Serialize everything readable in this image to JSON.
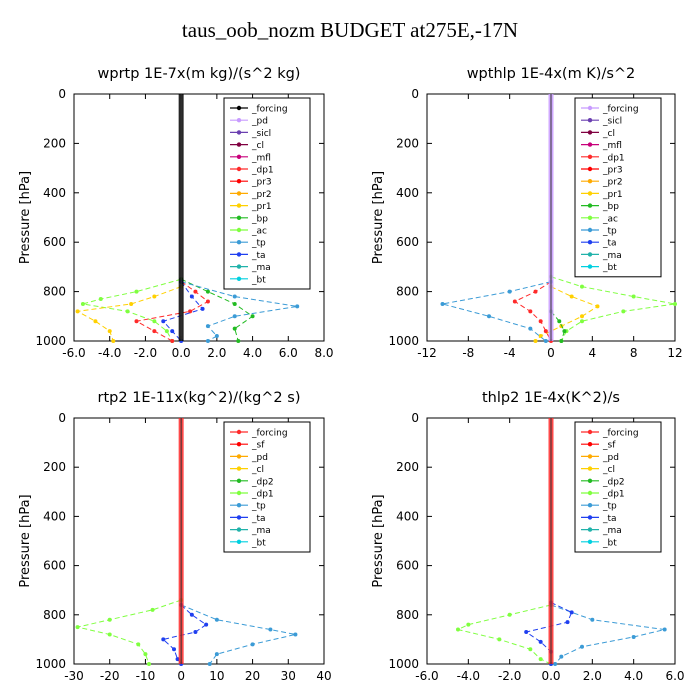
{
  "figure": {
    "title": "taus_oob_nozm  BUDGET at275E,-17N"
  },
  "chart_data": [
    {
      "type": "line",
      "title": "wprtp  1E-7x(m kg)/(s^2 kg)",
      "ylabel": "Pressure [hPa]",
      "xlim": [
        -6,
        8
      ],
      "ylim": [
        1000,
        0
      ],
      "xticks": [
        "-6.0",
        "-4.0",
        "-2.0",
        "0.0",
        "2.0",
        "4.0",
        "6.0",
        "8.0"
      ],
      "yticks": [
        "0",
        "200",
        "400",
        "600",
        "800",
        "1000"
      ],
      "legend_position": "top-right",
      "legend": [
        "_forcing",
        "_pd",
        "_sicl",
        "_cl",
        "_mfl",
        "_dp1",
        "_pr3",
        "_pr2",
        "_pr1",
        "_bp",
        "_ac",
        "_tp",
        "_ta",
        "_ma",
        "_bt"
      ],
      "colors": [
        "#000000",
        "#c89bff",
        "#6a3fb0",
        "#800040",
        "#c8007a",
        "#ff2a2a",
        "#ff0000",
        "#ffaa00",
        "#ffd000",
        "#22bb22",
        "#7fff3f",
        "#3b9bd6",
        "#1f3ff0",
        "#20b2aa",
        "#00d0e0"
      ],
      "series": [
        {
          "name": "_ac",
          "y": [
            750,
            800,
            830,
            850,
            880,
            920,
            960,
            1000
          ],
          "values": [
            0,
            -2.5,
            -4.5,
            -5.5,
            -3.0,
            -1.5,
            -0.8,
            -0.5
          ]
        },
        {
          "name": "_pr1",
          "y": [
            780,
            820,
            850,
            880,
            920,
            960,
            1000
          ],
          "values": [
            0,
            -1.5,
            -2.8,
            -5.8,
            -4.8,
            -4.0,
            -3.8
          ]
        },
        {
          "name": "_dp1",
          "y": [
            760,
            800,
            840,
            880,
            920,
            960,
            1000
          ],
          "values": [
            0,
            0.8,
            1.5,
            0.5,
            -2.5,
            -1.5,
            -0.5
          ]
        },
        {
          "name": "_bp",
          "y": [
            750,
            800,
            850,
            900,
            950,
            1000
          ],
          "values": [
            0,
            1.5,
            3.0,
            4.0,
            3.0,
            3.2
          ]
        },
        {
          "name": "_tp",
          "y": [
            760,
            820,
            860,
            900,
            940,
            980,
            1000
          ],
          "values": [
            0,
            3.0,
            6.5,
            3.0,
            1.5,
            2.0,
            1.5
          ]
        },
        {
          "name": "_ta",
          "y": [
            760,
            820,
            870,
            920,
            960,
            1000
          ],
          "values": [
            0,
            0.6,
            1.2,
            -1.0,
            -0.5,
            0
          ]
        }
      ]
    },
    {
      "type": "line",
      "title": "wpthlp  1E-4x(m K)/s^2",
      "ylabel": "Pressure [hPa]",
      "xlim": [
        -12,
        12
      ],
      "ylim": [
        1000,
        0
      ],
      "xticks": [
        "-12",
        "-8",
        "-4",
        "0",
        "4",
        "8",
        "12"
      ],
      "yticks": [
        "0",
        "200",
        "400",
        "600",
        "800",
        "1000"
      ],
      "legend_position": "top-right",
      "legend": [
        "_forcing",
        "_sicl",
        "_cl",
        "_mfl",
        "_dp1",
        "_pr3",
        "_pr2",
        "_pr1",
        "_bp",
        "_ac",
        "_tp",
        "_ta",
        "_ma",
        "_bt"
      ],
      "colors": [
        "#c89bff",
        "#6a3fb0",
        "#800040",
        "#c8007a",
        "#ff2a2a",
        "#ff0000",
        "#ffaa00",
        "#ffd000",
        "#22bb22",
        "#7fff3f",
        "#3b9bd6",
        "#1f3ff0",
        "#20b2aa",
        "#00d0e0"
      ],
      "series": [
        {
          "name": "_ac",
          "y": [
            740,
            780,
            820,
            850,
            880,
            920,
            960,
            1000
          ],
          "values": [
            0,
            3,
            8,
            12,
            7,
            3,
            1.5,
            1
          ]
        },
        {
          "name": "_pr1",
          "y": [
            780,
            820,
            860,
            900,
            940,
            980,
            1000
          ],
          "values": [
            0,
            2,
            4.5,
            3,
            1,
            -1,
            -1.5
          ]
        },
        {
          "name": "_dp1",
          "y": [
            760,
            800,
            840,
            880,
            920,
            960,
            1000
          ],
          "values": [
            0,
            -1.5,
            -3.5,
            -2,
            -1,
            -0.5,
            0
          ]
        },
        {
          "name": "_tp",
          "y": [
            760,
            800,
            850,
            900,
            950,
            1000
          ],
          "values": [
            0,
            -4,
            -10.5,
            -6,
            -2,
            -0.5
          ]
        },
        {
          "name": "_bp",
          "y": [
            880,
            920,
            960,
            1000
          ],
          "values": [
            0,
            0.8,
            1.3,
            1
          ]
        }
      ]
    },
    {
      "type": "line",
      "title": "rtp2  1E-11x(kg^2)/(kg^2 s)",
      "ylabel": "Pressure [hPa]",
      "xlim": [
        -30,
        40
      ],
      "ylim": [
        1000,
        0
      ],
      "xticks": [
        "-30",
        "-20",
        "-10",
        "0",
        "10",
        "20",
        "30",
        "40"
      ],
      "yticks": [
        "0",
        "200",
        "400",
        "600",
        "800",
        "1000"
      ],
      "legend_position": "top-right",
      "legend": [
        "_forcing",
        "_sf",
        "_pd",
        "_cl",
        "_dp2",
        "_dp1",
        "_tp",
        "_ta",
        "_ma",
        "_bt"
      ],
      "colors": [
        "#ff2a2a",
        "#ff0000",
        "#ffaa00",
        "#ffd000",
        "#22bb22",
        "#7fff3f",
        "#3b9bd6",
        "#1f3ff0",
        "#20b2aa",
        "#00d0e0"
      ],
      "series": [
        {
          "name": "_dp1",
          "y": [
            740,
            780,
            820,
            850,
            880,
            920,
            960,
            1000
          ],
          "values": [
            0,
            -8,
            -20,
            -29,
            -20,
            -12,
            -10,
            -9
          ]
        },
        {
          "name": "_tp",
          "y": [
            760,
            820,
            860,
            880,
            920,
            960,
            1000
          ],
          "values": [
            0,
            10,
            25,
            32,
            20,
            10,
            8
          ]
        },
        {
          "name": "_ta",
          "y": [
            760,
            800,
            840,
            870,
            900,
            940,
            980,
            1000
          ],
          "values": [
            0,
            3,
            7,
            4,
            -5,
            -2,
            -1,
            0
          ]
        }
      ]
    },
    {
      "type": "line",
      "title": "thlp2  1E-4x(K^2)/s",
      "ylabel": "Pressure [hPa]",
      "xlim": [
        -6,
        6
      ],
      "ylim": [
        1000,
        0
      ],
      "xticks": [
        "-6.0",
        "-4.0",
        "-2.0",
        "0.0",
        "2.0",
        "4.0",
        "6.0"
      ],
      "yticks": [
        "0",
        "200",
        "400",
        "600",
        "800",
        "1000"
      ],
      "legend_position": "top-right",
      "legend": [
        "_forcing",
        "_sf",
        "_pd",
        "_cl",
        "_dp2",
        "_dp1",
        "_tp",
        "_ta",
        "_ma",
        "_bt"
      ],
      "colors": [
        "#ff2a2a",
        "#ff0000",
        "#ffaa00",
        "#ffd000",
        "#22bb22",
        "#7fff3f",
        "#3b9bd6",
        "#1f3ff0",
        "#20b2aa",
        "#00d0e0"
      ],
      "series": [
        {
          "name": "_dp1",
          "y": [
            760,
            800,
            840,
            860,
            900,
            940,
            980,
            1000
          ],
          "values": [
            0,
            -2,
            -4,
            -4.5,
            -2.5,
            -1,
            -0.5,
            0
          ]
        },
        {
          "name": "_tp",
          "y": [
            760,
            820,
            860,
            890,
            930,
            970,
            1000
          ],
          "values": [
            0,
            2,
            5.5,
            4,
            1.5,
            0.5,
            0.2
          ]
        },
        {
          "name": "_ta",
          "y": [
            750,
            790,
            830,
            870,
            910,
            950,
            1000
          ],
          "values": [
            0,
            1,
            0.8,
            -1.2,
            -0.5,
            0,
            0
          ]
        }
      ]
    }
  ]
}
